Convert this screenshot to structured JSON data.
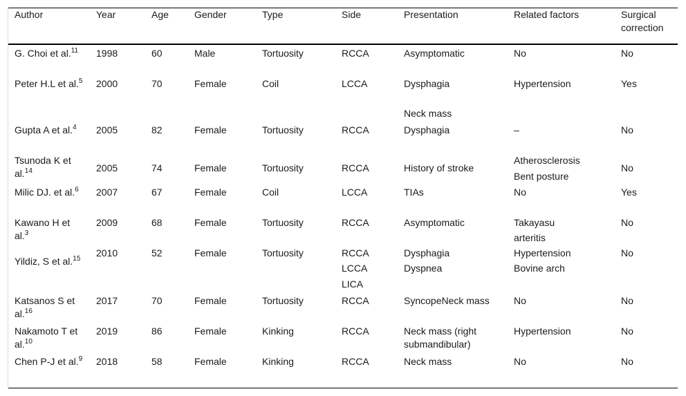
{
  "table": {
    "headers": [
      "Author",
      "Year",
      "Age",
      "Gender",
      "Type",
      "Side",
      "Presentation",
      "Related factors",
      "Surgical correction"
    ],
    "rows": [
      {
        "author": "G. Choi et al.",
        "ref": "11",
        "year": "1998",
        "age": "60",
        "gender": "Male",
        "type": "Tortuosity",
        "side": [
          "RCCA"
        ],
        "presentation": [
          "Asymptomatic"
        ],
        "related": [
          "No"
        ],
        "surgical": "No"
      },
      {
        "author": "Peter H.L et al.",
        "ref": "5",
        "year": "2000",
        "age": "70",
        "gender": "Female",
        "type": "Coil",
        "side": [
          "LCCA"
        ],
        "presentation": [
          "Dysphagia",
          "Neck mass"
        ],
        "related": [
          "Hypertension"
        ],
        "surgical": "Yes"
      },
      {
        "author": "Gupta A et al.",
        "ref": "4",
        "year": "2005",
        "age": "82",
        "gender": "Female",
        "type": "Tortuosity",
        "side": [
          "RCCA"
        ],
        "presentation": [
          "Dysphagia"
        ],
        "related": [
          "–"
        ],
        "surgical": "No"
      },
      {
        "author": "Tsunoda K et al.",
        "ref": "14",
        "year": "2005",
        "age": "74",
        "gender": "Female",
        "type": "Tortuosity",
        "side": [
          "RCCA"
        ],
        "presentation": [
          "History of stroke"
        ],
        "related": [
          "Atherosclerosis",
          "Bent posture"
        ],
        "surgical": "No"
      },
      {
        "author": "Milic DJ. et al.",
        "ref": "6",
        "year": "2007",
        "age": "67",
        "gender": "Female",
        "type": "Coil",
        "side": [
          "LCCA"
        ],
        "presentation": [
          "TIAs"
        ],
        "related": [
          "No"
        ],
        "surgical": "Yes"
      },
      {
        "author": "Kawano H et al.",
        "ref": "3",
        "year": "2009",
        "age": "68",
        "gender": "Female",
        "type": "Tortuosity",
        "side": [
          "RCCA"
        ],
        "presentation": [
          "Asymptomatic"
        ],
        "related": [
          "Takayasu",
          "arteritis"
        ],
        "surgical": "No"
      },
      {
        "author": "Yildiz, S et al.",
        "ref": "15",
        "year": "2010",
        "age": "52",
        "gender": "Female",
        "type": "Tortuosity",
        "side": [
          "RCCA",
          "LCCA",
          "LICA"
        ],
        "presentation": [
          "Dysphagia",
          "Dyspnea"
        ],
        "related": [
          "Hypertension",
          "Bovine arch"
        ],
        "surgical": "No"
      },
      {
        "author": "Katsanos S et al.",
        "ref": "16",
        "year": "2017",
        "age": "70",
        "gender": "Female",
        "type": "Tortuosity",
        "side": [
          "RCCA"
        ],
        "presentation": [
          "SyncopeNeck mass"
        ],
        "related": [
          "No"
        ],
        "surgical": "No"
      },
      {
        "author": "Nakamoto T et al.",
        "ref": "10",
        "year": "2019",
        "age": "86",
        "gender": "Female",
        "type": "Kinking",
        "side": [
          "RCCA"
        ],
        "presentation": [
          "Neck mass (right submandibular)"
        ],
        "related": [
          "Hypertension"
        ],
        "surgical": "No"
      },
      {
        "author": "Chen P-J et al.",
        "ref": "9",
        "year": "2018",
        "age": "58",
        "gender": "Female",
        "type": "Kinking",
        "side": [
          "RCCA"
        ],
        "presentation": [
          "Neck mass"
        ],
        "related": [
          "No"
        ],
        "surgical": "No"
      }
    ]
  }
}
